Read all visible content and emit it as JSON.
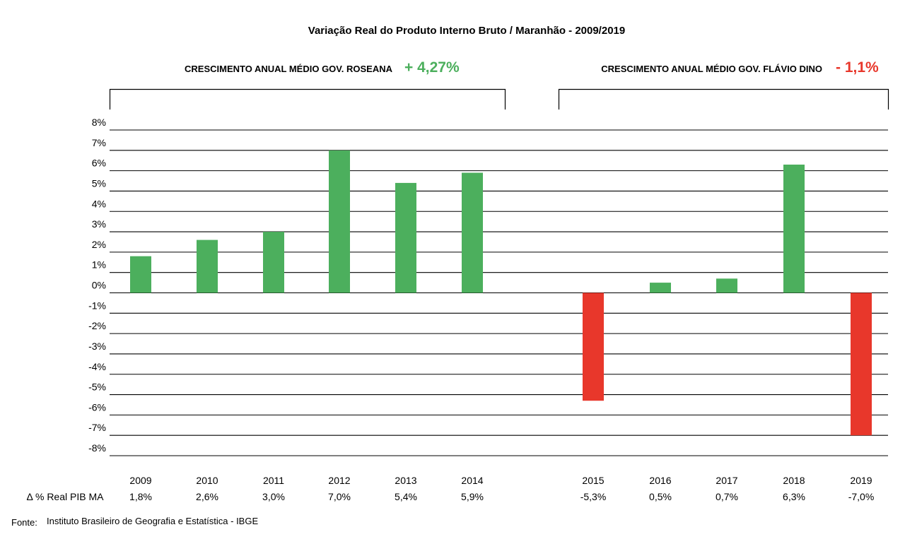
{
  "chart_data": {
    "type": "bar",
    "title": "Variação Real do Produto Interno Bruto / Maranhão - 2009/2019",
    "categories": [
      "2009",
      "2010",
      "2011",
      "2012",
      "2013",
      "2014",
      "2015",
      "2016",
      "2017",
      "2018",
      "2019"
    ],
    "values": [
      1.8,
      2.6,
      3.0,
      7.0,
      5.4,
      5.9,
      -5.3,
      0.5,
      0.7,
      6.3,
      -7.0
    ],
    "value_labels": [
      "1,8%",
      "2,6%",
      "3,0%",
      "7,0%",
      "5,4%",
      "5,9%",
      "-5,3%",
      "0,5%",
      "0,7%",
      "6,3%",
      "-7,0%"
    ],
    "ylim": [
      -8,
      8
    ],
    "yticks": [
      8,
      7,
      6,
      5,
      4,
      3,
      2,
      1,
      0,
      -1,
      -2,
      -3,
      -4,
      -5,
      -6,
      -7,
      -8
    ],
    "ytick_labels": [
      "8%",
      "7%",
      "6%",
      "5%",
      "4%",
      "3%",
      "2%",
      "1%",
      "0%",
      "-1%",
      "-2%",
      "-3%",
      "-4%",
      "-5%",
      "-6%",
      "-7%",
      "-8%"
    ],
    "grid": true,
    "colors": {
      "positive": "#4caf5d",
      "negative": "#e8372b",
      "title_green": "#4caf5d",
      "title_red": "#e8372b"
    },
    "row_label": "Δ % Real PIB MA",
    "annotations": [
      {
        "label": "CRESCIMENTO ANUAL MÉDIO GOV. ROSEANA",
        "value": "+ 4,27%",
        "color": "#4caf5d",
        "span": [
          "2009",
          "2014"
        ]
      },
      {
        "label": "CRESCIMENTO ANUAL MÉDIO GOV. FLÁVIO DINO",
        "value": "- 1,1%",
        "color": "#e8372b",
        "span": [
          "2015",
          "2019"
        ]
      }
    ]
  },
  "source": {
    "label": "Fonte:",
    "text": "Instituto Brasileiro de Geografia e Estatística - IBGE"
  }
}
